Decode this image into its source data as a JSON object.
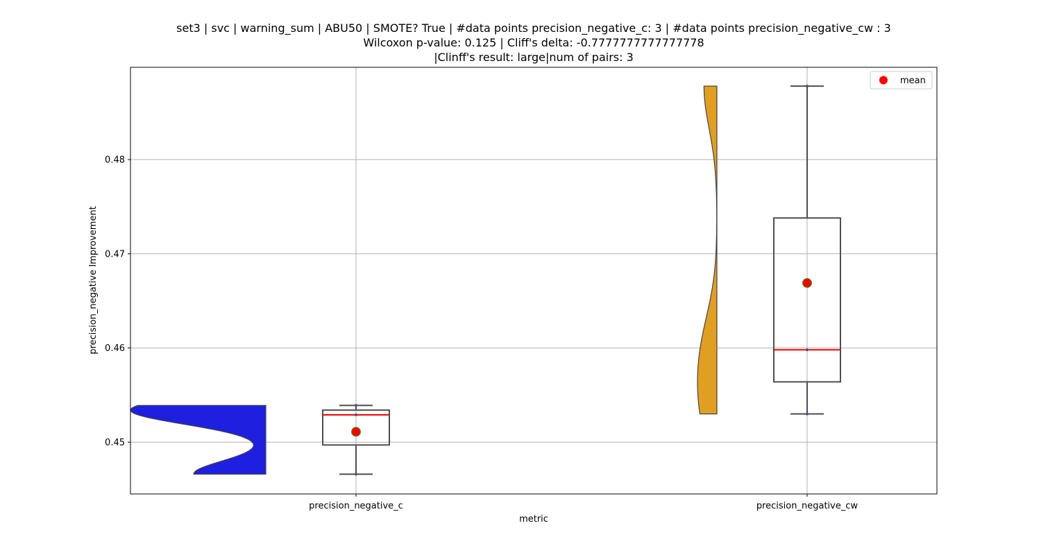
{
  "chart_data": {
    "type": "box",
    "title_lines": [
      "set3 | svc | warning_sum | ABU50 | SMOTE? True | #data points precision_negative_c: 3 | #data points precision_negative_cw : 3",
      "Wilcoxon p-value: 0.125 | Cliff's delta: -0.7777777777777778",
      "|Clinff's result: large|num of pairs: 3"
    ],
    "xlabel": "metric",
    "ylabel": "precision_negative Improvement",
    "categories": [
      "precision_negative_c",
      "precision_negative_cw"
    ],
    "ylim": [
      0.4445,
      0.4898
    ],
    "yticks": [
      0.45,
      0.46,
      0.47,
      0.48
    ],
    "ytick_labels": [
      "0.45",
      "0.46",
      "0.47",
      "0.48"
    ],
    "grid": true,
    "legend": {
      "position": "top-right",
      "entries": [
        {
          "label": "mean",
          "color": "#ff0000"
        }
      ]
    },
    "series": [
      {
        "category": "precision_negative_c",
        "points": [
          0.4466,
          0.4529,
          0.4539
        ],
        "box": {
          "whisker_low": 0.4466,
          "q1": 0.4497,
          "median": 0.4529,
          "q3": 0.4534,
          "whisker_high": 0.4539
        },
        "mean": 0.4511,
        "violin_color": "#1f1fe0"
      },
      {
        "category": "precision_negative_cw",
        "points": [
          0.453,
          0.4598,
          0.4878
        ],
        "box": {
          "whisker_low": 0.453,
          "q1": 0.4564,
          "median": 0.4598,
          "q3": 0.4738,
          "whisker_high": 0.4878
        },
        "mean": 0.4669,
        "violin_color": "#e09e22"
      }
    ],
    "colors": {
      "median": "#ff0000",
      "mean": "#ff0000",
      "mean_edge": "#2ca02c",
      "box_edge": "#4d4d4d",
      "grid": "#b0b0b0"
    }
  }
}
